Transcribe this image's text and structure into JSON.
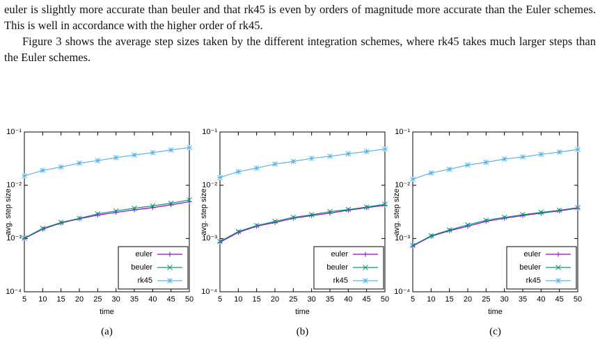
{
  "paragraphs": [
    "euler is slightly more accurate than beuler and that rk45 is even by orders of magnitude more accurate than the Euler schemes. This is well in accordance with the higher order of rk45.",
    "Figure 3 shows the average step sizes taken by the different integration schemes, where rk45 takes much larger steps than the Euler schemes."
  ],
  "chart_data": [
    {
      "type": "line",
      "caption": "(a)",
      "x_label": "time",
      "y_label": "avg. step size",
      "log_y": true,
      "legend": "lower right",
      "x": [
        5,
        10,
        15,
        20,
        25,
        30,
        35,
        40,
        45,
        50
      ],
      "xlim": [
        5,
        50
      ],
      "xticks": [
        5,
        10,
        15,
        20,
        25,
        30,
        35,
        40,
        45,
        50
      ],
      "ylim": [
        0.0001,
        0.1
      ],
      "yticks": [
        {
          "value": 0.0001,
          "label": "10⁻⁴"
        },
        {
          "value": 0.001,
          "label": "10⁻³"
        },
        {
          "value": 0.01,
          "label": "10⁻²"
        },
        {
          "value": 0.1,
          "label": "10⁻¹"
        }
      ],
      "series": [
        {
          "name": "euler",
          "color": "#9400d3",
          "marker": "plus",
          "values": [
            0.001,
            0.0015,
            0.00195,
            0.00235,
            0.00275,
            0.0031,
            0.00345,
            0.0038,
            0.0043,
            0.0049
          ]
        },
        {
          "name": "beuler",
          "color": "#009e73",
          "marker": "cross",
          "values": [
            0.00102,
            0.00155,
            0.002,
            0.0024,
            0.0029,
            0.0033,
            0.0037,
            0.0041,
            0.0046,
            0.0053
          ]
        },
        {
          "name": "rk45",
          "color": "#56b4e9",
          "marker": "star",
          "values": [
            0.015,
            0.019,
            0.022,
            0.026,
            0.029,
            0.033,
            0.037,
            0.041,
            0.046,
            0.051
          ]
        }
      ]
    },
    {
      "type": "line",
      "caption": "(b)",
      "x_label": "time",
      "y_label": "avg. step size",
      "log_y": true,
      "legend": "lower right",
      "x": [
        5,
        10,
        15,
        20,
        25,
        30,
        35,
        40,
        45,
        50
      ],
      "xlim": [
        5,
        50
      ],
      "xticks": [
        5,
        10,
        15,
        20,
        25,
        30,
        35,
        40,
        45,
        50
      ],
      "ylim": [
        0.0001,
        0.1
      ],
      "yticks": [
        {
          "value": 0.0001,
          "label": "10⁻⁴"
        },
        {
          "value": 0.001,
          "label": "10⁻³"
        },
        {
          "value": 0.01,
          "label": "10⁻²"
        },
        {
          "value": 0.1,
          "label": "10⁻¹"
        }
      ],
      "series": [
        {
          "name": "euler",
          "color": "#9400d3",
          "marker": "plus",
          "values": [
            0.00085,
            0.0013,
            0.0017,
            0.002,
            0.0024,
            0.0027,
            0.003,
            0.0034,
            0.0038,
            0.0042
          ]
        },
        {
          "name": "beuler",
          "color": "#009e73",
          "marker": "cross",
          "values": [
            0.00088,
            0.00135,
            0.00175,
            0.0021,
            0.0025,
            0.0028,
            0.0032,
            0.0035,
            0.0039,
            0.0044
          ]
        },
        {
          "name": "rk45",
          "color": "#56b4e9",
          "marker": "star",
          "values": [
            0.014,
            0.018,
            0.021,
            0.025,
            0.028,
            0.032,
            0.035,
            0.039,
            0.043,
            0.048
          ]
        }
      ]
    },
    {
      "type": "line",
      "caption": "(c)",
      "x_label": "time",
      "y_label": "avg. step size",
      "log_y": true,
      "legend": "lower right",
      "x": [
        5,
        10,
        15,
        20,
        25,
        30,
        35,
        40,
        45,
        50
      ],
      "xlim": [
        5,
        50
      ],
      "xticks": [
        5,
        10,
        15,
        20,
        25,
        30,
        35,
        40,
        45,
        50
      ],
      "ylim": [
        0.0001,
        0.1
      ],
      "yticks": [
        {
          "value": 0.0001,
          "label": "10⁻⁴"
        },
        {
          "value": 0.001,
          "label": "10⁻³"
        },
        {
          "value": 0.01,
          "label": "10⁻²"
        },
        {
          "value": 0.1,
          "label": "10⁻¹"
        }
      ],
      "series": [
        {
          "name": "euler",
          "color": "#9400d3",
          "marker": "plus",
          "values": [
            0.00072,
            0.0011,
            0.0014,
            0.0017,
            0.0021,
            0.0024,
            0.0027,
            0.003,
            0.0033,
            0.0037
          ]
        },
        {
          "name": "beuler",
          "color": "#009e73",
          "marker": "cross",
          "values": [
            0.00074,
            0.00113,
            0.00145,
            0.0018,
            0.0022,
            0.0025,
            0.0028,
            0.0031,
            0.0034,
            0.0038
          ]
        },
        {
          "name": "rk45",
          "color": "#56b4e9",
          "marker": "star",
          "values": [
            0.013,
            0.017,
            0.02,
            0.024,
            0.027,
            0.031,
            0.034,
            0.038,
            0.042,
            0.047
          ]
        }
      ]
    }
  ]
}
